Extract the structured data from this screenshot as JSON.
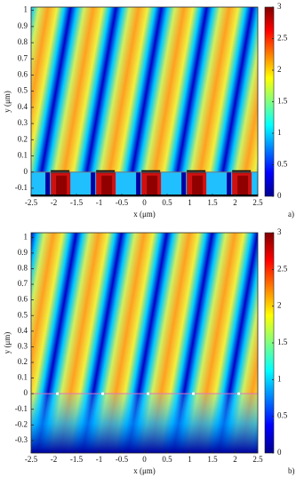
{
  "chart_data": [
    {
      "type": "heatmap",
      "panel_label": "a)",
      "xlabel": "x (μm)",
      "ylabel": "y (μm)",
      "xlim": [
        -2.5,
        2.5
      ],
      "ylim": [
        -0.15,
        1.02
      ],
      "xticks": [
        -2.5,
        -2,
        -1.5,
        -1,
        -0.5,
        0,
        0.5,
        1,
        1.5,
        2,
        2.5
      ],
      "yticks": [
        -0.1,
        0,
        0.1,
        0.2,
        0.3,
        0.4,
        0.5,
        0.6,
        0.7,
        0.8,
        0.9,
        1
      ],
      "colorbar": {
        "lim": [
          0,
          3
        ],
        "ticks": [
          0,
          0.5,
          1,
          1.5,
          2,
          2.5,
          3
        ],
        "colormap": "jet"
      }
    },
    {
      "type": "heatmap",
      "panel_label": "b)",
      "xlabel": "x (μm)",
      "ylabel": "y (μm)",
      "xlim": [
        -2.5,
        2.5
      ],
      "ylim": [
        -0.38,
        1.03
      ],
      "xticks": [
        -2.5,
        -2,
        -1.5,
        -1,
        -0.5,
        0,
        0.5,
        1,
        1.5,
        2,
        2.5
      ],
      "yticks": [
        -0.3,
        -0.2,
        -0.1,
        0,
        0.1,
        0.2,
        0.3,
        0.4,
        0.5,
        0.6,
        0.7,
        0.8,
        0.9,
        1
      ],
      "colorbar": {
        "lim": [
          0,
          3
        ],
        "ticks": [
          0,
          0.5,
          1,
          1.5,
          2,
          2.5,
          3
        ],
        "colormap": "jet"
      }
    }
  ]
}
